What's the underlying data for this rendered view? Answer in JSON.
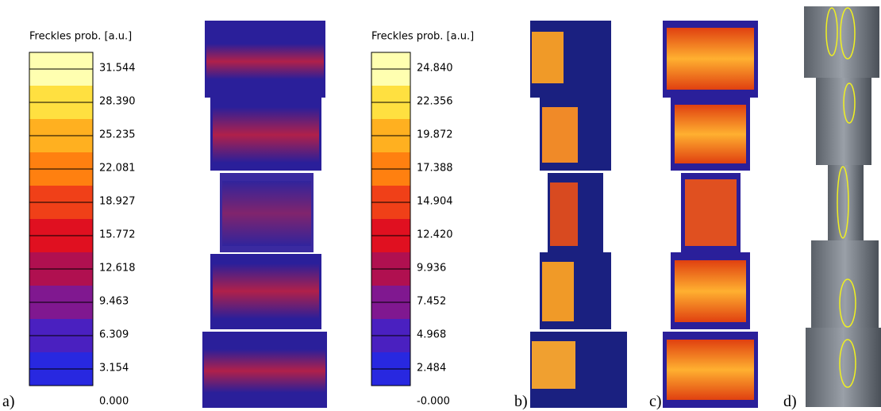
{
  "panels": [
    {
      "label": "a)",
      "colorbar": {
        "title": "Freckles prob.  [a.u.]",
        "ticks": [
          "31.544",
          "28.390",
          "25.235",
          "22.081",
          "18.927",
          "15.772",
          "12.618",
          "9.463",
          "6.309",
          "3.154",
          "0.000"
        ]
      }
    },
    {
      "label": "b)",
      "colorbar": {
        "title": "Freckles prob.  [a.u.]",
        "ticks": [
          "24.840",
          "22.356",
          "19.872",
          "17.388",
          "14.904",
          "12.420",
          "9.936",
          "7.452",
          "4.968",
          "2.484",
          "-0.000"
        ]
      }
    },
    {
      "label": "c)"
    },
    {
      "label": "d)"
    }
  ]
}
